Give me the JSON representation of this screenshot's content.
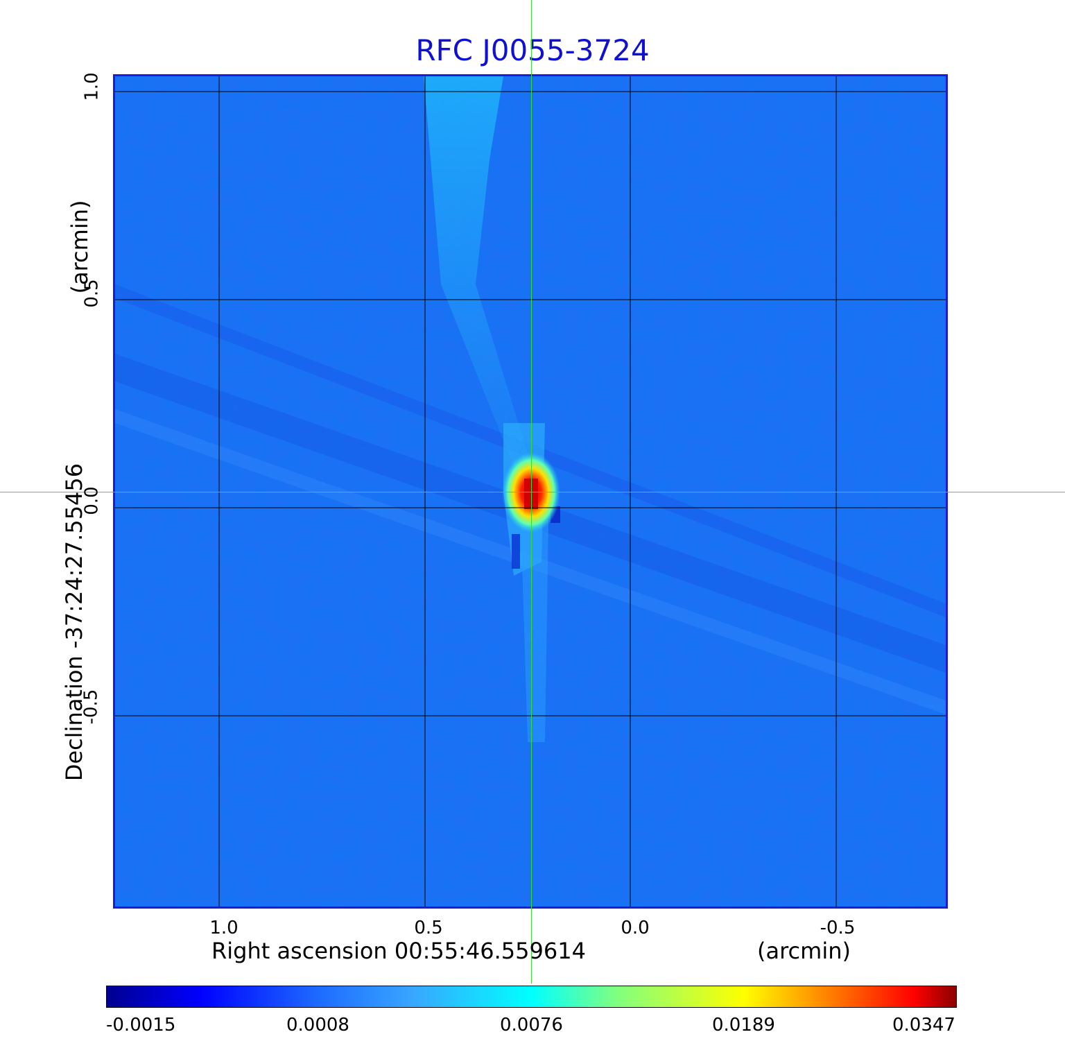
{
  "figure": {
    "title": "RFC J0055-3724",
    "x_label": "Right ascension  00:55:46.559614",
    "x_unit": "(arcmin)",
    "y_label": "Declination  -37:24:27.55456",
    "y_unit": "(arcmin)",
    "x_ticks": [
      "1.0",
      "0.5",
      "0.0",
      "-0.5"
    ],
    "y_ticks": [
      "1.0",
      "0.5",
      "0.0",
      "-0.5"
    ],
    "colorbar_ticks": [
      "-0.0015",
      "0.0008",
      "0.0076",
      "0.0189",
      "0.0347"
    ],
    "colormap": "jet",
    "colors": {
      "background_field": "#1f6ff2",
      "frame": "#1b1bd8",
      "title": "#1010d0",
      "crosshair": "#33dd33",
      "grid": "#000000"
    }
  }
}
